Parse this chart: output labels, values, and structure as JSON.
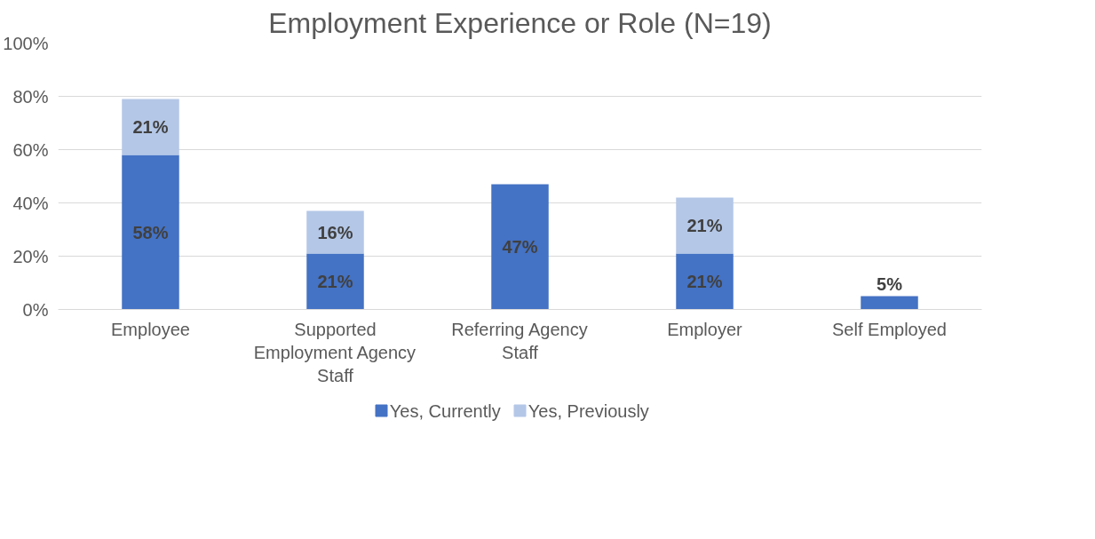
{
  "chart_data": {
    "type": "bar",
    "title": "Employment Experience or Role (N=19)",
    "categories": [
      "Employee",
      "Supported Employment Agency Staff",
      "Referring Agency Staff",
      "Employer",
      "Self Employed"
    ],
    "stacked": true,
    "series": [
      {
        "name": "Yes, Currently",
        "color": "#4472c4",
        "values": [
          58,
          21,
          47,
          21,
          5
        ],
        "value_labels": [
          "58%",
          "21%",
          "47%",
          "21%",
          "5%"
        ]
      },
      {
        "name": "Yes, Previously",
        "color": "#b4c7e7",
        "values": [
          21,
          16,
          null,
          21,
          null
        ],
        "value_labels": [
          "21%",
          "16%",
          null,
          "21%",
          null
        ]
      }
    ],
    "ylim": [
      0,
      100
    ],
    "yticks": [
      {
        "value": 0,
        "label": "0%"
      },
      {
        "value": 20,
        "label": "20%"
      },
      {
        "value": 40,
        "label": "40%"
      },
      {
        "value": 60,
        "label": "60%"
      },
      {
        "value": 80,
        "label": "80%"
      },
      {
        "value": 100,
        "label": "100%"
      }
    ],
    "grid": "y",
    "legend": "bottom"
  }
}
